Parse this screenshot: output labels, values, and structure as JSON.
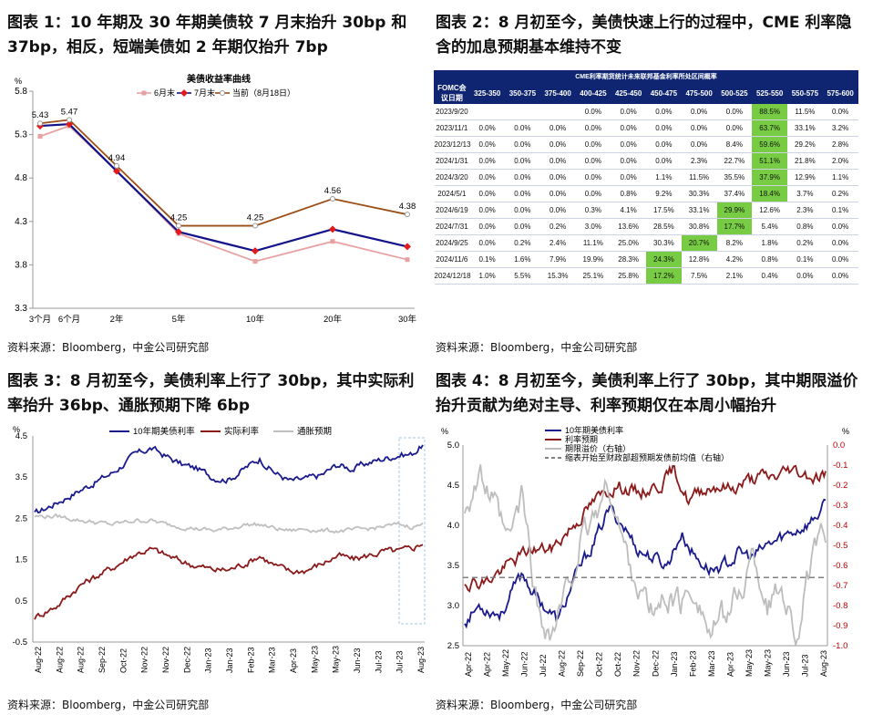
{
  "panel1": {
    "title": "图表 1：10 年期及 30 年期美债较 7 月末抬升 30bp 和 37bp，相反，短端美债如 2 年期仅抬升 7bp",
    "source": "资料来源：Bloomberg，中金公司研究部"
  },
  "panel2": {
    "title": "图表 2：8 月初至今，美债快速上行的过程中，CME 利率隐含的加息预期基本维持不变",
    "source": "资料来源：Bloomberg，中金公司研究部",
    "table_caption": "CME利率期货统计未来联邦基金利率所处区间概率",
    "corner_label": "FOMC会议日期"
  },
  "panel3": {
    "title": "图表 3：8 月初至今，美债利率上行了 30bp，其中实际利率抬升 36bp、通胀预期下降 6bp",
    "source": "资料来源：Bloomberg，中金公司研究部"
  },
  "panel4": {
    "title": "图表 4：8 月初至今，美债利率上行了 30bp，其中期限溢价抬升贡献为绝对主导、利率预期仅在本周小幅抬升",
    "source": "资料来源：Bloomberg，中金公司研究部"
  },
  "chart_data": [
    {
      "id": "yield_curve",
      "type": "line",
      "title": "美债收益率曲线",
      "ylabel": "%",
      "categories": [
        "3个月",
        "6个月",
        "2年",
        "5年",
        "10年",
        "20年",
        "30年"
      ],
      "x": [
        0.25,
        0.5,
        2,
        5,
        10,
        20,
        30
      ],
      "ylim": [
        3.3,
        5.8
      ],
      "yticks": [
        3.3,
        3.8,
        4.3,
        4.8,
        5.3,
        5.8
      ],
      "series": [
        {
          "name": "6月末",
          "color": "#e8a1a1",
          "marker": "square",
          "values": [
            5.28,
            5.4,
            4.88,
            4.16,
            3.84,
            4.07,
            3.86
          ]
        },
        {
          "name": "7月末",
          "color": "#12128a",
          "marker": "diamond",
          "values": [
            5.4,
            5.42,
            4.88,
            4.18,
            3.96,
            4.21,
            4.01
          ]
        },
        {
          "name": "当前（8月18日）",
          "color": "#9b4e16",
          "marker": "circle",
          "values": [
            5.43,
            5.47,
            4.94,
            4.25,
            4.25,
            4.56,
            4.38
          ]
        }
      ],
      "data_labels": [
        "5.43",
        "5.47",
        "4.94",
        "4.25",
        "4.25",
        "4.56",
        "4.38"
      ]
    },
    {
      "id": "cme_table",
      "type": "table",
      "columns": [
        "325-350",
        "350-375",
        "375-400",
        "400-425",
        "425-450",
        "450-475",
        "475-500",
        "500-525",
        "525-550",
        "550-575",
        "575-600"
      ],
      "rows": [
        {
          "date": "2023/9/20",
          "cells": [
            "",
            "",
            "",
            "0.0%",
            "0.0%",
            "0.0%",
            "0.0%",
            "0.0%",
            "88.5%",
            "11.5%",
            "0.0%"
          ],
          "hl": 8
        },
        {
          "date": "2023/11/1",
          "cells": [
            "0.0%",
            "0.0%",
            "0.0%",
            "0.0%",
            "0.0%",
            "0.0%",
            "0.0%",
            "0.0%",
            "63.7%",
            "33.1%",
            "3.2%"
          ],
          "hl": 8
        },
        {
          "date": "2023/12/13",
          "cells": [
            "0.0%",
            "0.0%",
            "0.0%",
            "0.0%",
            "0.0%",
            "0.0%",
            "0.0%",
            "8.4%",
            "59.6%",
            "29.2%",
            "2.8%"
          ],
          "hl": 8
        },
        {
          "date": "2024/1/31",
          "cells": [
            "0.0%",
            "0.0%",
            "0.0%",
            "0.0%",
            "0.0%",
            "0.0%",
            "2.3%",
            "22.7%",
            "51.1%",
            "21.8%",
            "2.0%"
          ],
          "hl": 8
        },
        {
          "date": "2024/3/20",
          "cells": [
            "0.0%",
            "0.0%",
            "0.0%",
            "0.0%",
            "0.0%",
            "1.1%",
            "11.5%",
            "35.5%",
            "37.9%",
            "12.9%",
            "1.1%"
          ],
          "hl": 8
        },
        {
          "date": "2024/5/1",
          "cells": [
            "0.0%",
            "0.0%",
            "0.0%",
            "0.8%",
            "9.2%",
            "30.3%",
            "37.4%",
            "18.4%",
            "3.7%",
            "0.2%",
            ""
          ],
          "hl": 7,
          "shifted": true
        },
        {
          "date": "2024/6/19",
          "cells": [
            "0.0%",
            "0.0%",
            "0.3%",
            "4.1%",
            "17.5%",
            "33.1%",
            "29.9%",
            "12.6%",
            "2.3%",
            "0.1%",
            ""
          ],
          "hl": 6,
          "shifted": true
        },
        {
          "date": "2024/7/31",
          "cells": [
            "0.0%",
            "0.2%",
            "3.0%",
            "13.6%",
            "28.5%",
            "30.8%",
            "17.7%",
            "5.4%",
            "0.8%",
            "0.0%",
            ""
          ],
          "hl": 6,
          "shifted": true
        },
        {
          "date": "2024/9/25",
          "cells": [
            "0.2%",
            "2.4%",
            "11.1%",
            "25.0%",
            "30.3%",
            "20.7%",
            "8.2%",
            "1.8%",
            "0.2%",
            "0.0%",
            ""
          ],
          "hl": 5,
          "shifted": true
        },
        {
          "date": "2024/11/6",
          "cells": [
            "1.6%",
            "7.9%",
            "19.9%",
            "28.3%",
            "24.3%",
            "12.8%",
            "4.2%",
            "0.8%",
            "0.1%",
            "0.0%",
            ""
          ],
          "hl": 4,
          "shifted": true
        },
        {
          "date": "2024/12/18",
          "cells": [
            "5.5%",
            "15.3%",
            "25.1%",
            "25.8%",
            "17.2%",
            "7.5%",
            "2.1%",
            "0.4%",
            "0.0%",
            "0.0%",
            ""
          ],
          "hl": 4,
          "shifted": true
        }
      ],
      "first_col_values": [
        "",
        "0.0%",
        "0.0%",
        "0.0%",
        "0.0%",
        "0.0%",
        "0.0%",
        "0.0%",
        "0.0%",
        "0.1%",
        "1.0%"
      ],
      "highlight_color": "#77cc44"
    },
    {
      "id": "real_rates",
      "type": "line",
      "ylabel": "%",
      "ylim": [
        -0.5,
        4.5
      ],
      "yticks": [
        -0.5,
        0.5,
        1.5,
        2.5,
        3.5,
        4.5
      ],
      "xticks": [
        "Aug-22",
        "Aug-22",
        "Aug-22",
        "Sep-22",
        "Oct-22",
        "Nov-22",
        "Nov-22",
        "Dec-22",
        "Jan-23",
        "Jan-23",
        "Feb-23",
        "Mar-23",
        "Apr-23",
        "May-23",
        "May-23",
        "Jun-23",
        "Jul-23",
        "Jul-23",
        "Aug-23"
      ],
      "series": [
        {
          "name": "10年期美债利率",
          "color": "#1a1a8c",
          "start": 2.6,
          "end": 4.28,
          "keypoints": [
            [
              0,
              2.6
            ],
            [
              0.06,
              2.9
            ],
            [
              0.12,
              3.2
            ],
            [
              0.2,
              3.6
            ],
            [
              0.26,
              4.05
            ],
            [
              0.3,
              4.2
            ],
            [
              0.34,
              4.0
            ],
            [
              0.38,
              3.8
            ],
            [
              0.42,
              3.7
            ],
            [
              0.46,
              3.5
            ],
            [
              0.5,
              3.45
            ],
            [
              0.54,
              3.7
            ],
            [
              0.58,
              3.95
            ],
            [
              0.62,
              3.6
            ],
            [
              0.66,
              3.4
            ],
            [
              0.7,
              3.45
            ],
            [
              0.74,
              3.55
            ],
            [
              0.78,
              3.8
            ],
            [
              0.82,
              3.7
            ],
            [
              0.86,
              3.85
            ],
            [
              0.9,
              3.95
            ],
            [
              0.94,
              4.05
            ],
            [
              0.97,
              4.05
            ],
            [
              1.0,
              4.28
            ]
          ]
        },
        {
          "name": "实际利率",
          "color": "#8b1a1a",
          "start": 0.1,
          "end": 1.92,
          "keypoints": [
            [
              0,
              0.1
            ],
            [
              0.06,
              0.4
            ],
            [
              0.12,
              0.9
            ],
            [
              0.2,
              1.3
            ],
            [
              0.26,
              1.65
            ],
            [
              0.3,
              1.75
            ],
            [
              0.34,
              1.6
            ],
            [
              0.38,
              1.45
            ],
            [
              0.42,
              1.35
            ],
            [
              0.46,
              1.25
            ],
            [
              0.5,
              1.25
            ],
            [
              0.54,
              1.4
            ],
            [
              0.58,
              1.6
            ],
            [
              0.62,
              1.35
            ],
            [
              0.66,
              1.2
            ],
            [
              0.7,
              1.25
            ],
            [
              0.74,
              1.4
            ],
            [
              0.78,
              1.6
            ],
            [
              0.82,
              1.5
            ],
            [
              0.86,
              1.6
            ],
            [
              0.9,
              1.7
            ],
            [
              0.94,
              1.7
            ],
            [
              0.97,
              1.75
            ],
            [
              1.0,
              1.92
            ]
          ]
        },
        {
          "name": "通胀预期",
          "color": "#bfbfbf",
          "start": 2.55,
          "end": 2.35,
          "keypoints": [
            [
              0,
              2.55
            ],
            [
              0.06,
              2.55
            ],
            [
              0.12,
              2.45
            ],
            [
              0.2,
              2.35
            ],
            [
              0.26,
              2.45
            ],
            [
              0.3,
              2.45
            ],
            [
              0.34,
              2.35
            ],
            [
              0.38,
              2.3
            ],
            [
              0.42,
              2.25
            ],
            [
              0.46,
              2.2
            ],
            [
              0.5,
              2.25
            ],
            [
              0.54,
              2.35
            ],
            [
              0.58,
              2.35
            ],
            [
              0.62,
              2.25
            ],
            [
              0.66,
              2.2
            ],
            [
              0.7,
              2.25
            ],
            [
              0.74,
              2.2
            ],
            [
              0.78,
              2.2
            ],
            [
              0.82,
              2.2
            ],
            [
              0.86,
              2.25
            ],
            [
              0.9,
              2.3
            ],
            [
              0.94,
              2.35
            ],
            [
              0.97,
              2.3
            ],
            [
              1.0,
              2.35
            ]
          ]
        }
      ]
    },
    {
      "id": "term_premium",
      "type": "line",
      "ylabel": "%",
      "ylim": [
        2.5,
        5.0
      ],
      "yticks": [
        2.5,
        3.0,
        3.5,
        4.0,
        4.5,
        5.0
      ],
      "y2label": "%",
      "y2lim": [
        -1.0,
        0.0
      ],
      "y2ticks": [
        0.0,
        -0.1,
        -0.2,
        -0.3,
        -0.4,
        -0.5,
        -0.6,
        -0.7,
        -0.8,
        -0.9,
        -1.0
      ],
      "xticks": [
        "Apr-22",
        "Apr-22",
        "May-22",
        "Jun-22",
        "Jul-22",
        "Aug-22",
        "Sep-22",
        "Oct-22",
        "Oct-22",
        "Nov-22",
        "Dec-22",
        "Jan-23",
        "Feb-23",
        "Mar-23",
        "Apr-23",
        "May-23",
        "May-23",
        "Jun-23",
        "Jul-23",
        "Aug-23"
      ],
      "series": [
        {
          "name": "10年期美债利率",
          "color": "#1a1a8c",
          "axis": "left",
          "keypoints": [
            [
              0,
              2.8
            ],
            [
              0.04,
              3.0
            ],
            [
              0.1,
              2.9
            ],
            [
              0.16,
              3.4
            ],
            [
              0.2,
              3.1
            ],
            [
              0.26,
              2.8
            ],
            [
              0.3,
              3.3
            ],
            [
              0.36,
              3.8
            ],
            [
              0.4,
              4.2
            ],
            [
              0.44,
              4.0
            ],
            [
              0.48,
              3.7
            ],
            [
              0.52,
              3.6
            ],
            [
              0.56,
              3.5
            ],
            [
              0.6,
              3.9
            ],
            [
              0.64,
              3.6
            ],
            [
              0.68,
              3.45
            ],
            [
              0.72,
              3.5
            ],
            [
              0.76,
              3.65
            ],
            [
              0.8,
              3.6
            ],
            [
              0.84,
              3.75
            ],
            [
              0.88,
              3.85
            ],
            [
              0.92,
              3.95
            ],
            [
              0.96,
              4.05
            ],
            [
              1.0,
              4.25
            ]
          ]
        },
        {
          "name": "利率预期",
          "color": "#8b1a1a",
          "axis": "left",
          "keypoints": [
            [
              0,
              3.3
            ],
            [
              0.06,
              3.3
            ],
            [
              0.12,
              3.5
            ],
            [
              0.18,
              3.7
            ],
            [
              0.24,
              3.7
            ],
            [
              0.3,
              4.0
            ],
            [
              0.36,
              4.3
            ],
            [
              0.42,
              4.5
            ],
            [
              0.48,
              4.4
            ],
            [
              0.54,
              4.5
            ],
            [
              0.58,
              4.7
            ],
            [
              0.62,
              4.3
            ],
            [
              0.66,
              4.45
            ],
            [
              0.7,
              4.5
            ],
            [
              0.74,
              4.45
            ],
            [
              0.78,
              4.55
            ],
            [
              0.82,
              4.6
            ],
            [
              0.86,
              4.6
            ],
            [
              0.9,
              4.7
            ],
            [
              0.94,
              4.65
            ],
            [
              0.97,
              4.6
            ],
            [
              1.0,
              4.65
            ]
          ]
        },
        {
          "name": "期限溢价（右轴）",
          "color": "#bdbdbd",
          "axis": "right",
          "keypoints": [
            [
              0,
              -0.3
            ],
            [
              0.04,
              -0.15
            ],
            [
              0.08,
              -0.3
            ],
            [
              0.12,
              -0.5
            ],
            [
              0.16,
              -0.25
            ],
            [
              0.2,
              -0.8
            ],
            [
              0.24,
              -0.95
            ],
            [
              0.28,
              -0.75
            ],
            [
              0.32,
              -0.5
            ],
            [
              0.36,
              -0.35
            ],
            [
              0.4,
              -0.2
            ],
            [
              0.44,
              -0.5
            ],
            [
              0.48,
              -0.7
            ],
            [
              0.52,
              -0.85
            ],
            [
              0.56,
              -0.75
            ],
            [
              0.6,
              -0.8
            ],
            [
              0.64,
              -0.7
            ],
            [
              0.68,
              -0.95
            ],
            [
              0.72,
              -0.85
            ],
            [
              0.76,
              -0.75
            ],
            [
              0.8,
              -0.55
            ],
            [
              0.84,
              -0.8
            ],
            [
              0.88,
              -0.7
            ],
            [
              0.92,
              -0.95
            ],
            [
              0.96,
              -0.6
            ],
            [
              1.0,
              -0.45
            ]
          ]
        },
        {
          "name": "缩表开始至财政部超预期发债前均值（右轴）",
          "color": "#808080",
          "axis": "right",
          "dashed": true,
          "value": -0.66
        }
      ]
    }
  ]
}
